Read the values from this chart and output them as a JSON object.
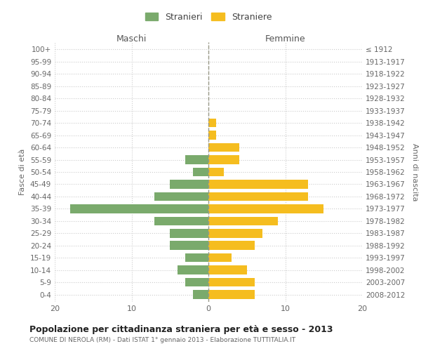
{
  "age_groups": [
    "0-4",
    "5-9",
    "10-14",
    "15-19",
    "20-24",
    "25-29",
    "30-34",
    "35-39",
    "40-44",
    "45-49",
    "50-54",
    "55-59",
    "60-64",
    "65-69",
    "70-74",
    "75-79",
    "80-84",
    "85-89",
    "90-94",
    "95-99",
    "100+"
  ],
  "birth_years": [
    "2008-2012",
    "2003-2007",
    "1998-2002",
    "1993-1997",
    "1988-1992",
    "1983-1987",
    "1978-1982",
    "1973-1977",
    "1968-1972",
    "1963-1967",
    "1958-1962",
    "1953-1957",
    "1948-1952",
    "1943-1947",
    "1938-1942",
    "1933-1937",
    "1928-1932",
    "1923-1927",
    "1918-1922",
    "1913-1917",
    "≤ 1912"
  ],
  "maschi": [
    2,
    3,
    4,
    3,
    5,
    5,
    7,
    18,
    7,
    5,
    2,
    3,
    0,
    0,
    0,
    0,
    0,
    0,
    0,
    0,
    0
  ],
  "femmine": [
    6,
    6,
    5,
    3,
    6,
    7,
    9,
    15,
    13,
    13,
    2,
    4,
    4,
    1,
    1,
    0,
    0,
    0,
    0,
    0,
    0
  ],
  "color_maschi": "#7aaa6c",
  "color_femmine": "#f5bd1f",
  "title": "Popolazione per cittadinanza straniera per età e sesso - 2013",
  "subtitle": "COMUNE DI NEROLA (RM) - Dati ISTAT 1° gennaio 2013 - Elaborazione TUTTITALIA.IT",
  "header_left": "Maschi",
  "header_right": "Femmine",
  "ylabel_left": "Fasce di età",
  "ylabel_right": "Anni di nascita",
  "legend_maschi": "Stranieri",
  "legend_femmine": "Straniere",
  "xlim": 20,
  "background_color": "#ffffff",
  "grid_color": "#cccccc"
}
